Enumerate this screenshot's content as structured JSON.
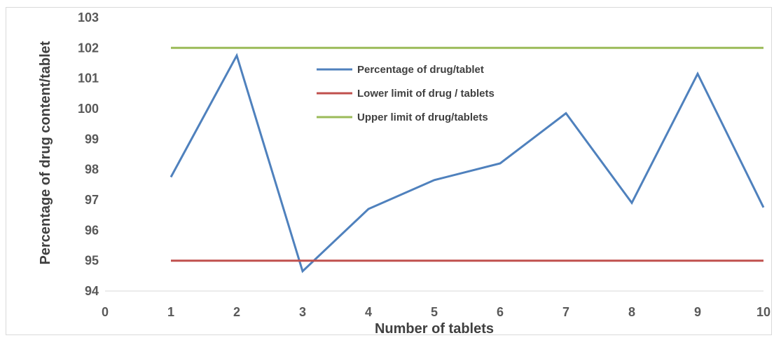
{
  "chart_data": {
    "type": "line",
    "xlabel": "Number of tablets",
    "ylabel": "Percentage of drug content/tablet",
    "xlim": [
      0,
      10
    ],
    "ylim": [
      94,
      103
    ],
    "x_ticks": [
      "0",
      "1",
      "2",
      "3",
      "4",
      "5",
      "6",
      "7",
      "8",
      "9",
      "10"
    ],
    "y_ticks": [
      "94",
      "95",
      "96",
      "97",
      "98",
      "99",
      "100",
      "101",
      "102",
      "103"
    ],
    "grid": false,
    "legend_position": "top-center",
    "series": [
      {
        "name": "Percentage of drug/tablet",
        "color": "#4f81bd",
        "x": [
          1,
          2,
          3,
          4,
          5,
          6,
          7,
          8,
          9,
          10
        ],
        "y": [
          97.75,
          101.75,
          94.65,
          96.7,
          97.65,
          98.2,
          99.85,
          96.9,
          101.15,
          96.75
        ]
      },
      {
        "name": "Lower limit of drug / tablets",
        "color": "#c0504d",
        "x": [
          1,
          10
        ],
        "y": [
          95,
          95
        ]
      },
      {
        "name": "Upper limit of drug/tablets",
        "color": "#9bbb59",
        "x": [
          1,
          10
        ],
        "y": [
          102,
          102
        ]
      }
    ]
  }
}
